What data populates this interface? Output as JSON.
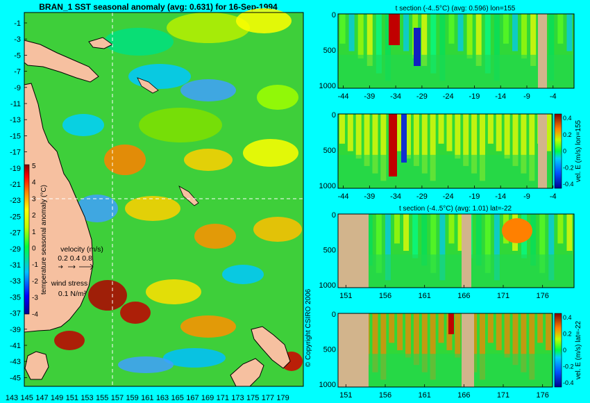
{
  "chart_data": [
    {
      "type": "heatmap",
      "title": "BRAN_1 SST seasonal anomaly (avg: 0.631) for 16-Sep-1994",
      "x_ticks": [
        "143",
        "145",
        "147",
        "149",
        "151",
        "153",
        "155",
        "157",
        "159",
        "161",
        "163",
        "165",
        "167",
        "169",
        "171",
        "173",
        "175",
        "177",
        "179"
      ],
      "y_ticks": [
        "-1",
        "-3",
        "-5",
        "-7",
        "-9",
        "-11",
        "-13",
        "-15",
        "-17",
        "-19",
        "-21",
        "-23",
        "-25",
        "-27",
        "-29",
        "-31",
        "-33",
        "-35",
        "-37",
        "-39",
        "-41",
        "-43",
        "-45"
      ],
      "xlim": [
        143,
        180
      ],
      "ylim": [
        -45,
        0
      ],
      "colorbar": {
        "label": "temperature seasonal anomaly (°C)",
        "ticks": [
          "5",
          "4",
          "3",
          "2",
          "1",
          "0",
          "-1",
          "-2",
          "-3",
          "-4"
        ],
        "range": [
          -4,
          5
        ]
      },
      "legend": {
        "velocity_label": "velocity (m/s)",
        "velocity_scale": "0.2 0.4 0.8",
        "wind_label": "wind stress",
        "wind_scale": "0.1 N/m²"
      },
      "crosshair": {
        "lon": 155,
        "lat": -22
      },
      "copyright": "© Copyright CSIRO 2006"
    },
    {
      "type": "heatmap",
      "title": "t section (-4..5°C) (avg: 0.596) lon=155",
      "x_ticks": [
        "-44",
        "-39",
        "-34",
        "-29",
        "-24",
        "-19",
        "-14",
        "-9",
        "-4"
      ],
      "y_ticks": [
        "0",
        "500",
        "1000"
      ],
      "xlim": [
        -45,
        0
      ],
      "ylim": [
        1050,
        0
      ]
    },
    {
      "type": "heatmap",
      "title": "",
      "x_ticks": [
        "-44",
        "-39",
        "-34",
        "-29",
        "-24",
        "-19",
        "-14",
        "-9",
        "-4"
      ],
      "y_ticks": [
        "0",
        "500",
        "1000"
      ],
      "xlim": [
        -45,
        0
      ],
      "ylim": [
        1050,
        0
      ],
      "colorbar": {
        "label": "vel. E (m/s) lon=155",
        "ticks": [
          "0.4",
          "0.2",
          "0",
          "-0.2",
          "-0.4"
        ],
        "range": [
          -0.4,
          0.4
        ]
      }
    },
    {
      "type": "heatmap",
      "title": "t section (-4..5°C) (avg: 1.01) lat=-22",
      "x_ticks": [
        "151",
        "156",
        "161",
        "166",
        "171",
        "176"
      ],
      "y_ticks": [
        "0",
        "500",
        "1000"
      ],
      "xlim": [
        150,
        180
      ],
      "ylim": [
        1050,
        0
      ]
    },
    {
      "type": "heatmap",
      "title": "",
      "x_ticks": [
        "151",
        "156",
        "161",
        "166",
        "171",
        "176"
      ],
      "y_ticks": [
        "0",
        "500",
        "1000"
      ],
      "xlim": [
        150,
        180
      ],
      "ylim": [
        1050,
        0
      ],
      "colorbar": {
        "label": "vel. E (m/s) lat=-22",
        "ticks": [
          "0.4",
          "0.2",
          "0",
          "-0.2",
          "-0.4"
        ],
        "range": [
          -0.4,
          0.4
        ]
      }
    }
  ]
}
